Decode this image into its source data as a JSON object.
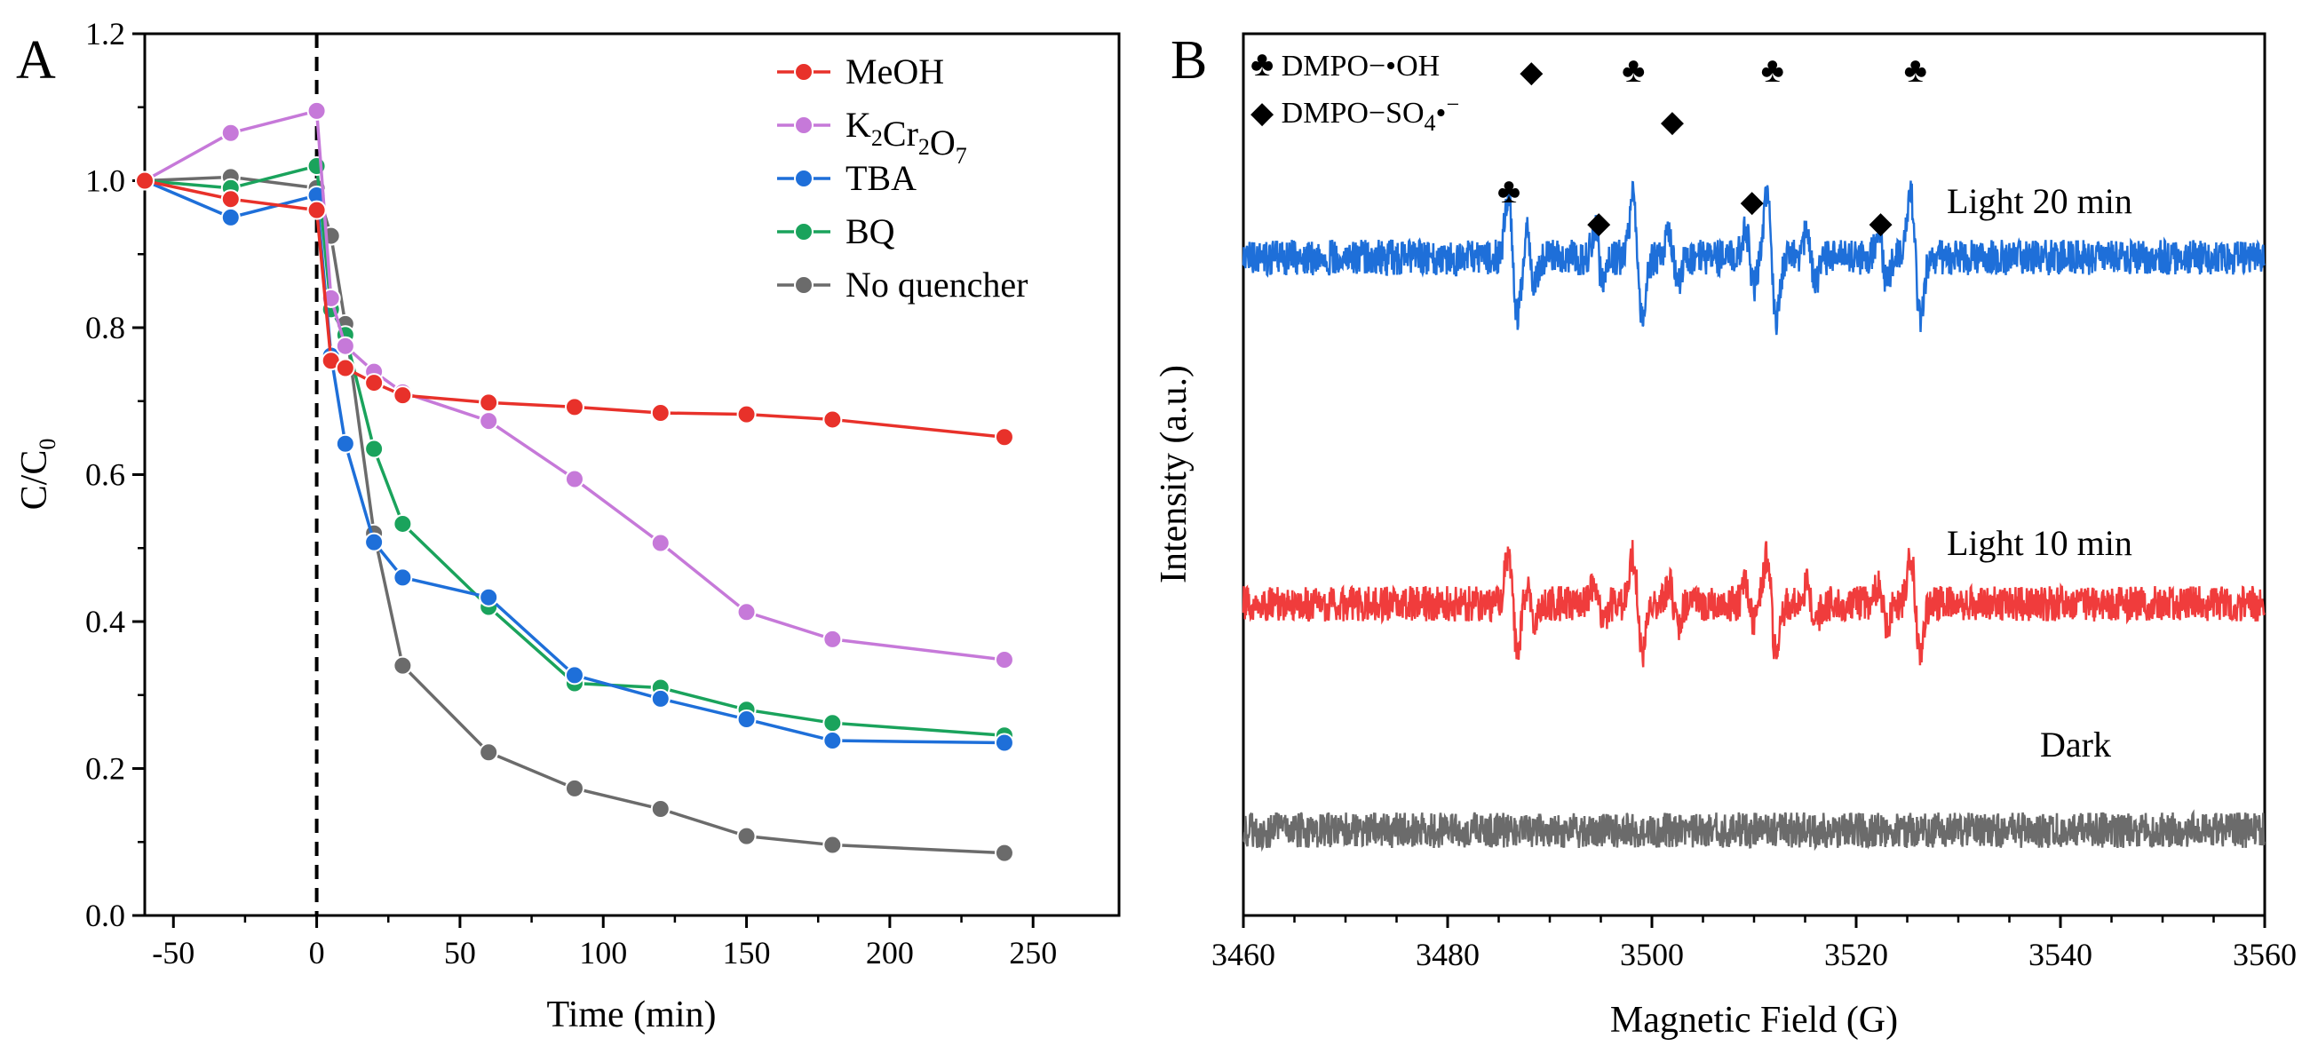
{
  "chart_data": [
    {
      "panel": "A",
      "type": "line",
      "xlabel": "Time (min)",
      "ylabel": {
        "base": "C/C",
        "sub": "0"
      },
      "xlim": [
        -60,
        280
      ],
      "ylim": [
        0.0,
        1.2
      ],
      "xticks": [
        -50,
        0,
        50,
        100,
        150,
        200,
        250
      ],
      "yticks": [
        0.0,
        0.2,
        0.4,
        0.6,
        0.8,
        1.0,
        1.2
      ],
      "xtick_labels": [
        "-50",
        "0",
        "50",
        "100",
        "150",
        "200",
        "250"
      ],
      "ytick_labels": [
        "0.0",
        "0.2",
        "0.4",
        "0.6",
        "0.8",
        "1.0",
        "1.2"
      ],
      "vline_x": 0,
      "legend_position": "top-right",
      "series": [
        {
          "name": "MeOH",
          "label_parts": [
            [
              "MeOH",
              ""
            ]
          ],
          "color": "#e8312a",
          "x": [
            -60,
            -30,
            0,
            5,
            10,
            20,
            30,
            60,
            90,
            120,
            150,
            180,
            240
          ],
          "y": [
            1.0,
            0.975,
            0.96,
            0.755,
            0.745,
            0.725,
            0.708,
            0.698,
            0.692,
            0.684,
            0.682,
            0.675,
            0.651
          ]
        },
        {
          "name": "K2Cr2O7",
          "label_parts": [
            [
              "K",
              "2"
            ],
            [
              "Cr",
              "2"
            ],
            [
              "O",
              "7"
            ]
          ],
          "color": "#c679d9",
          "x": [
            -60,
            -30,
            0,
            5,
            10,
            20,
            30,
            60,
            90,
            120,
            150,
            180,
            240
          ],
          "y": [
            1.0,
            1.065,
            1.095,
            0.84,
            0.775,
            0.74,
            0.712,
            0.673,
            0.594,
            0.507,
            0.413,
            0.376,
            0.348
          ]
        },
        {
          "name": "TBA",
          "label_parts": [
            [
              "TBA",
              ""
            ]
          ],
          "color": "#1e6fd9",
          "x": [
            -60,
            -30,
            0,
            5,
            10,
            20,
            30,
            60,
            90,
            120,
            150,
            180,
            240
          ],
          "y": [
            1.0,
            0.95,
            0.98,
            0.762,
            0.642,
            0.508,
            0.46,
            0.433,
            0.327,
            0.295,
            0.267,
            0.238,
            0.235
          ]
        },
        {
          "name": "BQ",
          "label_parts": [
            [
              "BQ",
              ""
            ]
          ],
          "color": "#1aa35c",
          "x": [
            -60,
            -30,
            0,
            5,
            10,
            20,
            30,
            60,
            90,
            120,
            150,
            180,
            240
          ],
          "y": [
            1.0,
            0.99,
            1.02,
            0.825,
            0.79,
            0.635,
            0.533,
            0.42,
            0.316,
            0.31,
            0.28,
            0.262,
            0.245
          ]
        },
        {
          "name": "No quencher",
          "label_parts": [
            [
              "No quencher",
              ""
            ]
          ],
          "color": "#6b6b6b",
          "x": [
            -60,
            -30,
            0,
            5,
            10,
            20,
            30,
            60,
            90,
            120,
            150,
            180,
            240
          ],
          "y": [
            1.0,
            1.005,
            0.99,
            0.925,
            0.805,
            0.52,
            0.34,
            0.222,
            0.173,
            0.145,
            0.108,
            0.096,
            0.085
          ]
        }
      ]
    },
    {
      "panel": "B",
      "type": "line",
      "title": "",
      "xlabel": "Magnetic Field (G)",
      "ylabel": "Intensity (a.u.)",
      "xlim": [
        3460,
        3560
      ],
      "xticks": [
        3460,
        3480,
        3500,
        3520,
        3540,
        3560
      ],
      "xtick_labels": [
        "3460",
        "3480",
        "3500",
        "3520",
        "3540",
        "3560"
      ],
      "yticks_shown": false,
      "series": [
        {
          "name": "Light 20 min",
          "color": "#1e6fd9",
          "baseline": 0.0,
          "amplitude": 1.0
        },
        {
          "name": "Light 10 min",
          "color": "#f03c3c",
          "baseline": 0.0,
          "amplitude": 0.8
        },
        {
          "name": "Dark",
          "color": "#6b6b6b",
          "baseline": 0.0,
          "amplitude": 0.0
        }
      ],
      "oh_peaks_G": [
        3486.4,
        3498.6,
        3511.7,
        3525.8
      ],
      "so4_peaks_G": [
        3488.1,
        3494.8,
        3502.1,
        3509.6,
        3515.6,
        3522.6
      ],
      "legend": {
        "oh": {
          "symbol": "♣",
          "text": " DMPO−•OH"
        },
        "so4": {
          "symbol": "◆",
          "text": " DMPO−SO",
          "sub": "4",
          "tail": "•",
          "sup": "−"
        }
      },
      "markers": [
        {
          "symbol": "♣",
          "x": 3486.0,
          "row": "low"
        },
        {
          "symbol": "◆",
          "x": 3488.2,
          "row": "high"
        },
        {
          "symbol": "◆",
          "x": 3494.8,
          "row": "mid"
        },
        {
          "symbol": "♣",
          "x": 3498.2,
          "row": "high"
        },
        {
          "symbol": "◆",
          "x": 3502.0,
          "row": "midhigh"
        },
        {
          "symbol": "◆",
          "x": 3509.8,
          "row": "lowmid"
        },
        {
          "symbol": "♣",
          "x": 3511.8,
          "row": "high"
        },
        {
          "symbol": "◆",
          "x": 3522.4,
          "row": "mid"
        },
        {
          "symbol": "♣",
          "x": 3525.8,
          "row": "high"
        }
      ]
    }
  ],
  "panels": {
    "a": "A",
    "b": "B"
  }
}
